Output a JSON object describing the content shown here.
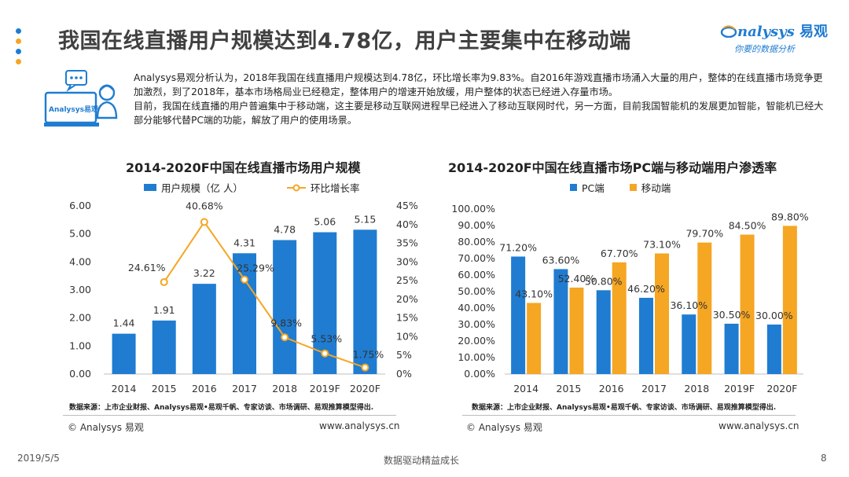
{
  "header": {
    "title": "我国在线直播用户规模达到4.78亿，用户主要集中在移动端",
    "dot_colors": [
      "#1f7cd1",
      "#f5a623",
      "#1f7cd1",
      "#f5a623"
    ]
  },
  "logo": {
    "brand": "nalysys",
    "brand_cn": "易观",
    "slogan": "你要的数据分析"
  },
  "intro": {
    "icon_label": "Analysys易观",
    "paragraph1": "Analysys易观分析认为，2018年我国在线直播用户规模达到4.78亿，环比增长率为9.83%。自2016年游戏直播市场涌入大量的用户，整体的在线直播市场竞争更加激烈，到了2018年，基本市场格局业已经稳定，整体用户的增速开始放缓，用户整体的状态已经进入存量市场。",
    "paragraph2": "目前，我国在线直播的用户普遍集中于移动端，这主要是移动互联网进程早已经进入了移动互联网时代，另一方面，目前我国智能机的发展更加智能，智能机已经大部分能够代替PC端的功能，解放了用户的使用场景。"
  },
  "left_panel": {
    "source": "数据来源：上市企业财报、Analysys易观•易观千帆、专家访谈、市场调研、易观推算模型得出.",
    "copyright": "© Analysys 易观",
    "website": "www.analysys.cn"
  },
  "right_panel": {
    "source": "数据来源：上市企业财报、Analysys易观•易观千帆、专家访谈、市场调研、易观推算模型得出.",
    "copyright": "© Analysys 易观",
    "website": "www.analysys.cn"
  },
  "footer": {
    "date": "2019/5/5",
    "slogan": "数据驱动精益成长",
    "page": "8"
  },
  "chart_data": [
    {
      "type": "bar",
      "title": "2014-2020F中国在线直播市场用户规模",
      "categories": [
        "2014",
        "2015",
        "2016",
        "2017",
        "2018",
        "2019F",
        "2020F"
      ],
      "series": [
        {
          "name": "用户规模（亿 人）",
          "type": "bar",
          "axis": "left",
          "color": "#1f7cd1",
          "values": [
            1.44,
            1.91,
            3.22,
            4.31,
            4.78,
            5.06,
            5.15
          ],
          "labels": [
            "1.44",
            "1.91",
            "3.22",
            "4.31",
            "4.78",
            "5.06",
            "5.15"
          ]
        },
        {
          "name": "环比增长率",
          "type": "line",
          "axis": "right",
          "color": "#f5a623",
          "values": [
            null,
            24.61,
            40.68,
            25.29,
            9.83,
            5.53,
            1.75
          ],
          "labels": [
            "",
            "24.61%",
            "40.68%",
            "25.29%",
            "9.83%",
            "5.53%",
            "1.75%"
          ]
        }
      ],
      "y_left": {
        "min": 0,
        "max": 6,
        "ticks": [
          "0.00",
          "1.00",
          "2.00",
          "3.00",
          "4.00",
          "5.00",
          "6.00"
        ]
      },
      "y_right": {
        "min": 0,
        "max": 45,
        "ticks": [
          "0%",
          "5%",
          "10%",
          "15%",
          "20%",
          "25%",
          "30%",
          "35%",
          "40%",
          "45%"
        ]
      },
      "legend": "top"
    },
    {
      "type": "bar",
      "title": "2014-2020F中国在线直播市场PC端与移动端用户渗透率",
      "categories": [
        "2014",
        "2015",
        "2016",
        "2017",
        "2018",
        "2019F",
        "2020F"
      ],
      "series": [
        {
          "name": "PC端",
          "color": "#1f7cd1",
          "values": [
            71.2,
            63.6,
            50.8,
            46.2,
            36.1,
            30.5,
            30.0
          ],
          "labels": [
            "71.20%",
            "63.60%",
            "50.80%",
            "46.20%",
            "36.10%",
            "30.50%",
            "30.00%"
          ]
        },
        {
          "name": "移动端",
          "color": "#f5a623",
          "values": [
            43.1,
            52.4,
            67.7,
            73.1,
            79.7,
            84.5,
            89.8
          ],
          "labels": [
            "43.10%",
            "52.40%",
            "67.70%",
            "73.10%",
            "79.70%",
            "84.50%",
            "89.80%"
          ]
        }
      ],
      "y": {
        "min": 0,
        "max": 100,
        "ticks": [
          "0.00%",
          "10.00%",
          "20.00%",
          "30.00%",
          "40.00%",
          "50.00%",
          "60.00%",
          "70.00%",
          "80.00%",
          "90.00%",
          "100.00%"
        ]
      },
      "legend": "top"
    }
  ]
}
